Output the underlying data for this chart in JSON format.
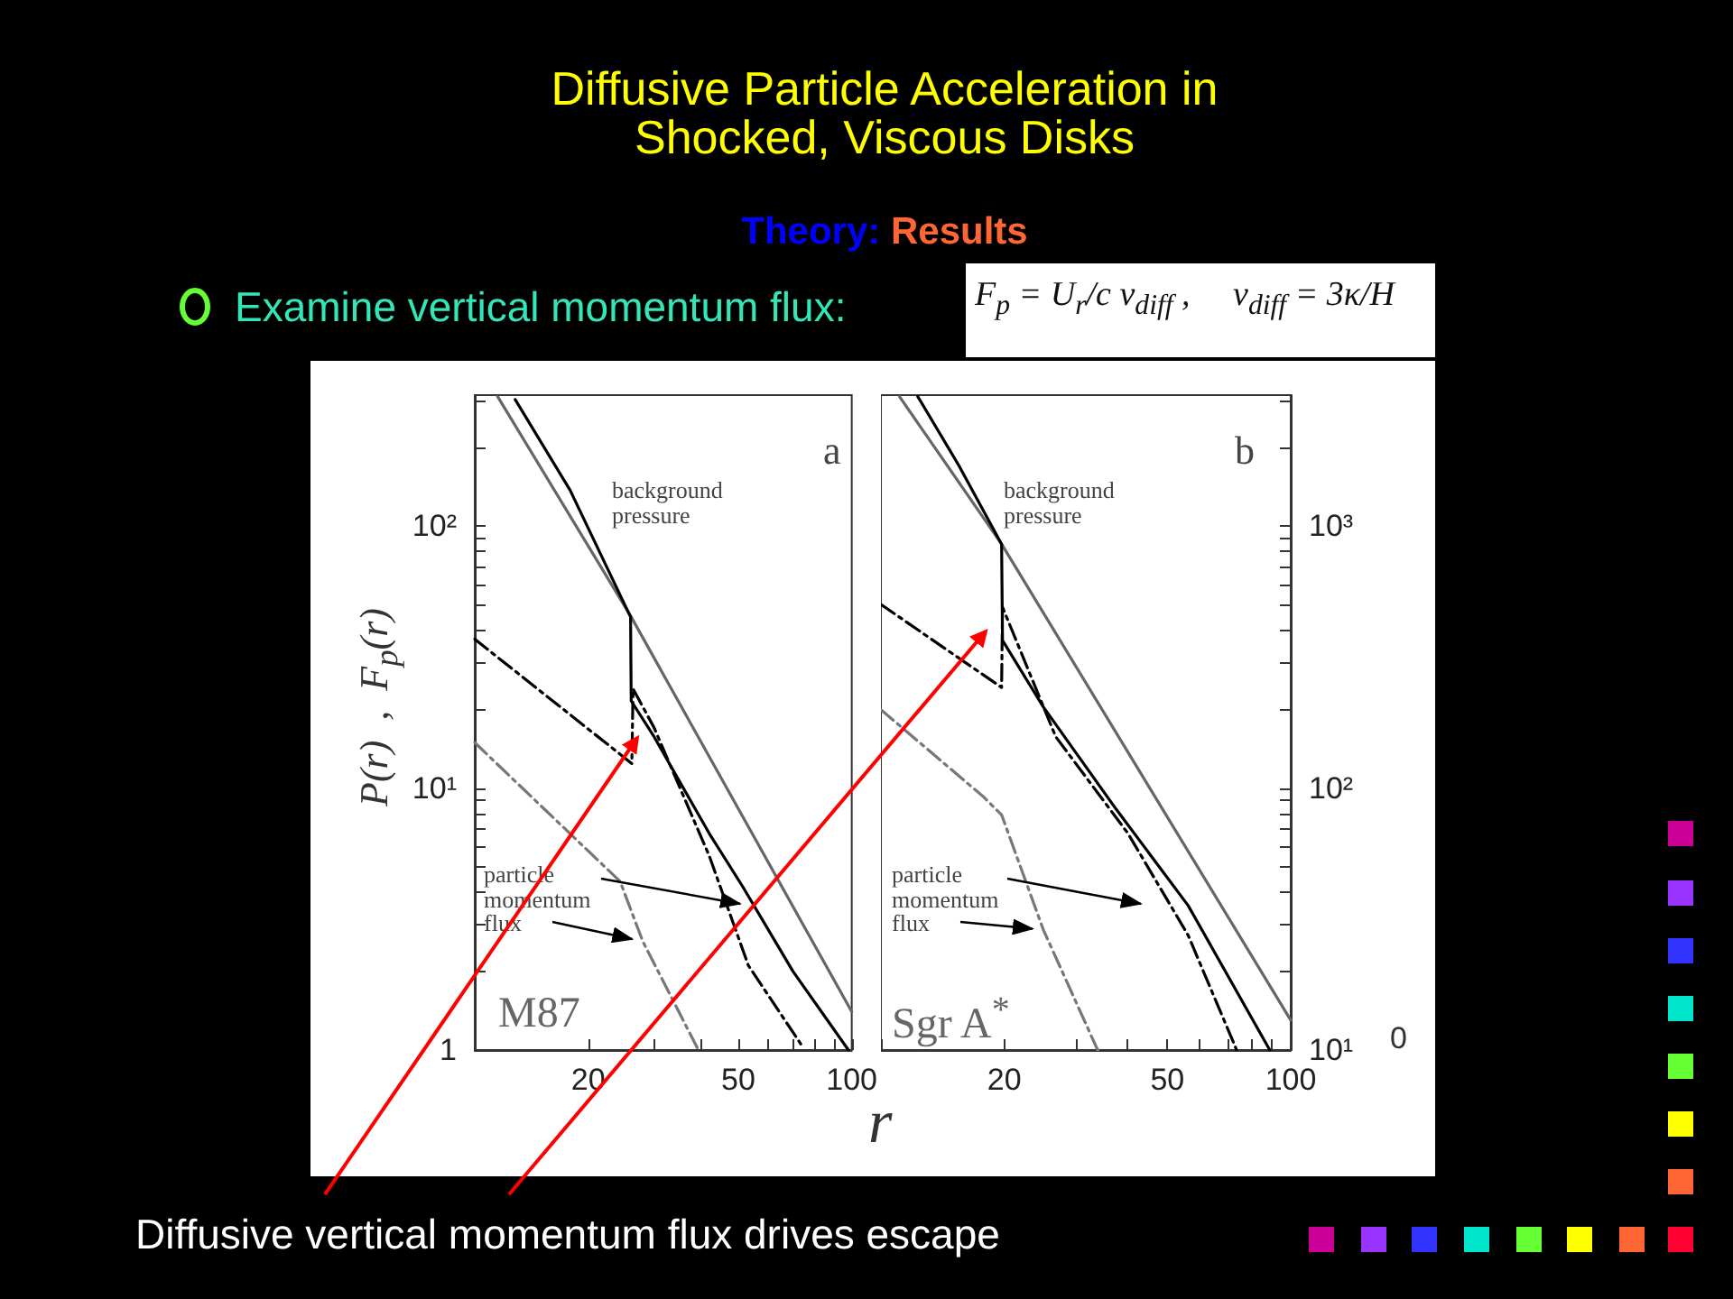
{
  "chart_data": [
    {
      "type": "line",
      "title": "Diffusive Particle Acceleration in Shocked, Viscous Disks",
      "subtitle": "Theory: Results",
      "xlabel": "r",
      "ylabel": "P(r)  ,  F$_{p}$(r)",
      "annotations": [
        "Examine vertical momentum flux:",
        "F$_{p}$ = U$_{r}$/c v$_{diff}$ ,     v$_{diff}$ = 3κ/H",
        "a",
        "background\npressure",
        {
          "text": "particle\nmomentum\nflux",
          "x": 27.9,
          "y": 2.6
        },
        "M87",
        "Diffusive vertical momentum flux drives escape"
      ],
      "log": "xy",
      "xlim": [
        10,
        100
      ],
      "ylim": [
        1,
        316
      ],
      "xticks": [
        {
          "value": 10,
          "label": null
        },
        20,
        {
          "value": 30,
          "label": null
        },
        {
          "value": 40,
          "label": null
        },
        50,
        {
          "value": 60,
          "label": null
        },
        {
          "value": 70,
          "label": null
        },
        {
          "value": 80,
          "label": null
        },
        {
          "value": 90,
          "label": null
        },
        100
      ],
      "yticks": [
        1,
        {
          "value": 2,
          "label": null
        },
        {
          "value": 3,
          "label": null
        },
        {
          "value": 4,
          "label": null
        },
        {
          "value": 5,
          "label": null
        },
        {
          "value": 6,
          "label": null
        },
        {
          "value": 7,
          "label": null
        },
        {
          "value": 8,
          "label": null
        },
        {
          "value": 9,
          "label": null
        },
        {
          "value": 10,
          "label": "10¹"
        },
        {
          "value": 20,
          "label": null
        },
        {
          "value": 30,
          "label": null
        },
        {
          "value": 40,
          "label": null
        },
        {
          "value": 50,
          "label": null
        },
        {
          "value": 60,
          "label": null
        },
        {
          "value": 70,
          "label": null
        },
        {
          "value": 80,
          "label": null
        },
        {
          "value": 90,
          "label": null
        },
        {
          "value": 100,
          "label": "10²"
        },
        {
          "value": 200,
          "label": null
        },
        {
          "value": 300,
          "label": null
        }
      ],
      "series": [
        {
          "color": "#666666",
          "line_style": "solid",
          "x": [
            11.5,
            26,
            100
          ],
          "values": [
            312,
            45,
            1.4
          ]
        },
        {
          "color": "#000000",
          "line_style": "solid",
          "x": [
            12.8,
            17.9,
            25.9,
            26,
            29.9,
            41.9,
            51.4,
            69.8,
            98
          ],
          "values": [
            304,
            137,
            45,
            21.5,
            15.7,
            6.7,
            4.2,
            2,
            1
          ]
        },
        {
          "color": "#000000",
          "line_style": "dashed",
          "x": [
            10,
            26.1,
            26.3,
            29.9,
            41.9,
            53.2,
            73.4
          ],
          "values": [
            37,
            12.4,
            23.9,
            17,
            5.5,
            2.1,
            1.05
          ]
        },
        {
          "color": "#777777",
          "line_style": "dashed",
          "x": [
            10,
            24.3,
            27.9,
            39.2
          ],
          "values": [
            14.9,
            4.4,
            2.6,
            1
          ]
        }
      ]
    },
    {
      "type": "line",
      "annotations": [
        "b",
        "background\npressure",
        {
          "text": "particle\nmomentum\nflux",
          "x": 24.9,
          "y": 28.8
        },
        "Sgr A$^{*}$",
        "0"
      ],
      "log": "xy",
      "xlim": [
        10,
        100
      ],
      "ylim": [
        10,
        3160
      ],
      "xticks": [
        {
          "value": 10,
          "label": null
        },
        20,
        {
          "value": 30,
          "label": null
        },
        {
          "value": 40,
          "label": null
        },
        50,
        {
          "value": 60,
          "label": null
        },
        {
          "value": 70,
          "label": null
        },
        {
          "value": 80,
          "label": null
        },
        {
          "value": 90,
          "label": null
        },
        100
      ],
      "yticks": [
        {
          "value": 10,
          "label": "10¹"
        },
        {
          "value": 20,
          "label": null
        },
        {
          "value": 30,
          "label": null
        },
        {
          "value": 40,
          "label": null
        },
        {
          "value": 50,
          "label": null
        },
        {
          "value": 60,
          "label": null
        },
        {
          "value": 70,
          "label": null
        },
        {
          "value": 80,
          "label": null
        },
        {
          "value": 90,
          "label": null
        },
        {
          "value": 100,
          "label": "10²"
        },
        {
          "value": 200,
          "label": null
        },
        {
          "value": 300,
          "label": null
        },
        {
          "value": 400,
          "label": null
        },
        {
          "value": 500,
          "label": null
        },
        {
          "value": 600,
          "label": null
        },
        {
          "value": 700,
          "label": null
        },
        {
          "value": 800,
          "label": null
        },
        {
          "value": 900,
          "label": null
        },
        {
          "value": 1000,
          "label": "10³"
        },
        {
          "value": 2000,
          "label": null
        },
        {
          "value": 3000,
          "label": null
        }
      ],
      "series": [
        {
          "color": "#666666",
          "line_style": "solid",
          "x": [
            11.1,
            19.7,
            100
          ],
          "values": [
            3120,
            853,
            13
          ]
        },
        {
          "color": "#000000",
          "line_style": "solid",
          "x": [
            12.3,
            15.5,
            19.7,
            19.8,
            24.9,
            37.5,
            56.2,
            88.9
          ],
          "values": [
            3120,
            1700,
            853,
            366,
            204,
            83,
            35.6,
            10
          ]
        },
        {
          "color": "#000000",
          "line_style": "dashed",
          "x": [
            10,
            19.7,
            19.8,
            26.7,
            40.1,
            56.2,
            73.8
          ],
          "values": [
            502,
            242,
            490,
            157,
            67,
            27.4,
            10
          ]
        },
        {
          "color": "#777777",
          "line_style": "dashed",
          "x": [
            10,
            17.8,
            19.7,
            24.9,
            33.8
          ],
          "values": [
            199,
            92.5,
            79,
            28.8,
            10
          ]
        }
      ]
    }
  ]
}
